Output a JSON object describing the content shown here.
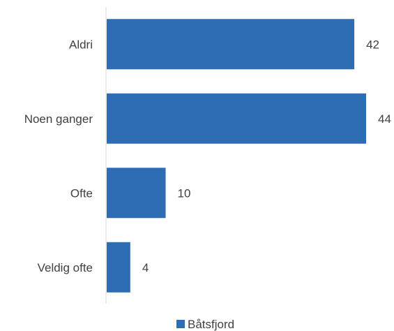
{
  "chart_data": {
    "type": "bar",
    "orientation": "horizontal",
    "categories": [
      "Aldri",
      "Noen ganger",
      "Ofte",
      "Veldig ofte"
    ],
    "series": [
      {
        "name": "Båtsfjord",
        "values": [
          42,
          44,
          10,
          4
        ],
        "color": "#2e6db4"
      }
    ],
    "data_labels": [
      "42",
      "44",
      "10",
      "4"
    ],
    "xlim": [
      0,
      44
    ],
    "grid": false,
    "legend": "bottom"
  }
}
